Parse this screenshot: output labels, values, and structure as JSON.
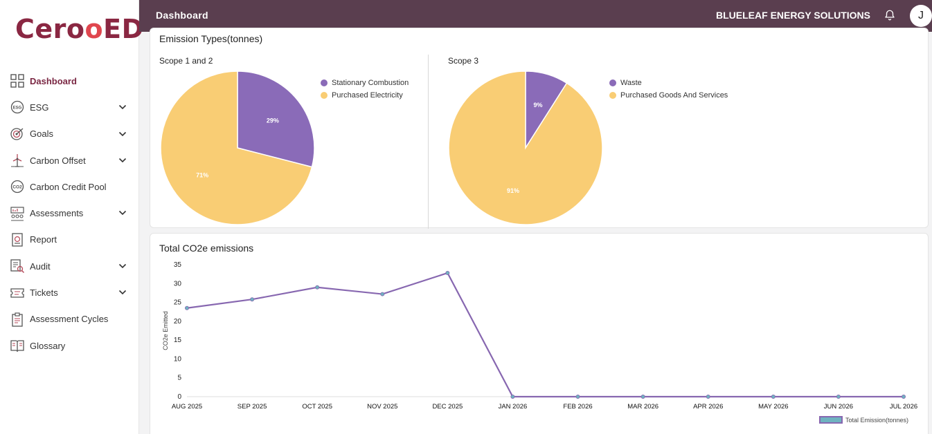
{
  "app": {
    "logo_left": "Cero",
    "logo_o": "",
    "logo_right": "ED"
  },
  "sidebar": {
    "items": [
      {
        "label": "Dashboard",
        "icon": "grid-icon",
        "chevron": false,
        "active": true
      },
      {
        "label": "ESG",
        "icon": "esg-icon",
        "chevron": true,
        "active": false
      },
      {
        "label": "Goals",
        "icon": "target-icon",
        "chevron": true,
        "active": false
      },
      {
        "label": "Carbon Offset",
        "icon": "wind-turbine-icon",
        "chevron": true,
        "active": false
      },
      {
        "label": "Carbon Credit Pool",
        "icon": "co2-icon",
        "chevron": false,
        "active": false
      },
      {
        "label": "Assessments",
        "icon": "assessment-icon",
        "chevron": true,
        "active": false
      },
      {
        "label": "Report",
        "icon": "report-icon",
        "chevron": false,
        "active": false
      },
      {
        "label": "Audit",
        "icon": "audit-icon",
        "chevron": true,
        "active": false
      },
      {
        "label": "Tickets",
        "icon": "ticket-icon",
        "chevron": true,
        "active": false
      },
      {
        "label": "Assessment Cycles",
        "icon": "clipboard-icon",
        "chevron": false,
        "active": false
      },
      {
        "label": "Glossary",
        "icon": "book-icon",
        "chevron": false,
        "active": false
      }
    ]
  },
  "header": {
    "title": "Dashboard",
    "company": "BLUELEAF ENERGY SOLUTIONS",
    "avatar_initial": "J"
  },
  "emission_types": {
    "title": "Emission Types(tonnes)"
  },
  "colors": {
    "purple": "#8a6bb8",
    "yellow": "#f9cd74",
    "line": "#8767b0",
    "point": "#6fb3c0",
    "accent": "#7a2743",
    "header": "#5a3e4f"
  },
  "chart_data": [
    {
      "type": "pie",
      "title": "Scope 1 and 2",
      "slices": [
        {
          "label": "Stationary Combustion",
          "value": 29,
          "display": "29%"
        },
        {
          "label": "Purchased Electricity",
          "value": 71,
          "display": "71%"
        }
      ]
    },
    {
      "type": "pie",
      "title": "Scope 3",
      "slices": [
        {
          "label": "Waste",
          "value": 9,
          "display": "9%"
        },
        {
          "label": "Purchased Goods And Services",
          "value": 91,
          "display": "91%"
        }
      ]
    },
    {
      "type": "line",
      "title": "Total CO2e emissions",
      "ylabel": "CO2e Emitted",
      "xlabel": "",
      "ylim": [
        0,
        35
      ],
      "yticks": [
        0,
        5,
        10,
        15,
        20,
        25,
        30,
        35
      ],
      "categories": [
        "AUG 2025",
        "SEP 2025",
        "OCT 2025",
        "NOV 2025",
        "DEC 2025",
        "JAN 2026",
        "FEB 2026",
        "MAR 2026",
        "APR 2026",
        "MAY 2026",
        "JUN 2026",
        "JUL 2026"
      ],
      "series": [
        {
          "name": "Total Emission(tonnes)",
          "values": [
            23.5,
            25.8,
            29,
            27.2,
            32.8,
            0,
            0,
            0,
            0,
            0,
            0,
            0
          ]
        }
      ],
      "legend": "bottom-right"
    }
  ]
}
